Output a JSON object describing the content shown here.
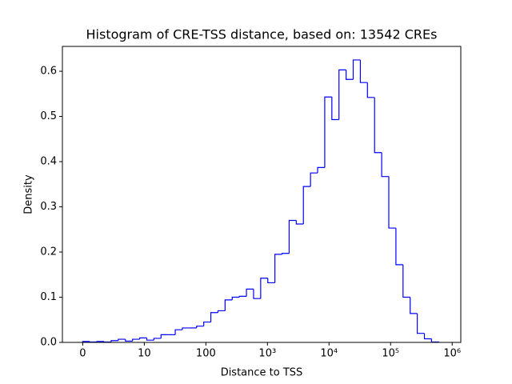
{
  "chart_data": {
    "type": "histogram",
    "title": "Histogram of CRE-TSS distance, based on: 13542 CREs",
    "x_label": "Distance to TSS",
    "y_label": "Density",
    "color": "#0000ff",
    "bins": [
      0,
      0.1156,
      0.2312,
      0.3468,
      0.4624,
      0.578,
      0.6936,
      0.8092,
      0.9248,
      1.0404,
      1.156,
      1.2716,
      1.3872,
      1.5028,
      1.6184,
      1.734,
      1.8496,
      1.9652,
      2.0808,
      2.1964,
      2.312,
      2.4276,
      2.5432,
      2.6588,
      2.7744,
      2.89,
      3.0056,
      3.1212,
      3.2368,
      3.3524,
      3.468,
      3.5836,
      3.6992,
      3.8148,
      3.9304,
      4.046,
      4.1616,
      4.2772,
      4.3928,
      4.5084,
      4.624,
      4.7396,
      4.8552,
      4.9708,
      5.0864,
      5.202,
      5.3176,
      5.4332,
      5.5488,
      5.6644,
      5.78
    ],
    "values": [
      0.002,
      0.001,
      0.002,
      0.001,
      0.004,
      0.007,
      0.003,
      0.007,
      0.01,
      0.005,
      0.009,
      0.017,
      0.017,
      0.028,
      0.032,
      0.032,
      0.036,
      0.045,
      0.066,
      0.07,
      0.094,
      0.1,
      0.102,
      0.118,
      0.097,
      0.142,
      0.132,
      0.195,
      0.197,
      0.27,
      0.262,
      0.345,
      0.375,
      0.387,
      0.543,
      0.493,
      0.603,
      0.582,
      0.625,
      0.575,
      0.542,
      0.42,
      0.367,
      0.253,
      0.172,
      0.1,
      0.064,
      0.02,
      0.008,
      0.001
    ],
    "xlim": [
      -0.33,
      6.14
    ],
    "xticks": [
      {
        "value": 0,
        "label": "0"
      },
      {
        "value": 1,
        "label": "10"
      },
      {
        "value": 2,
        "label": "100"
      },
      {
        "value": 3,
        "label": "10³"
      },
      {
        "value": 4,
        "label": "10⁴"
      },
      {
        "value": 5,
        "label": "10⁵"
      },
      {
        "value": 6,
        "label": "10⁶"
      }
    ],
    "ylim": [
      0,
      0.655
    ],
    "yticks": [
      {
        "value": 0,
        "label": "0.0"
      },
      0.1,
      0.2,
      0.3,
      0.4,
      0.5,
      0.6
    ]
  }
}
